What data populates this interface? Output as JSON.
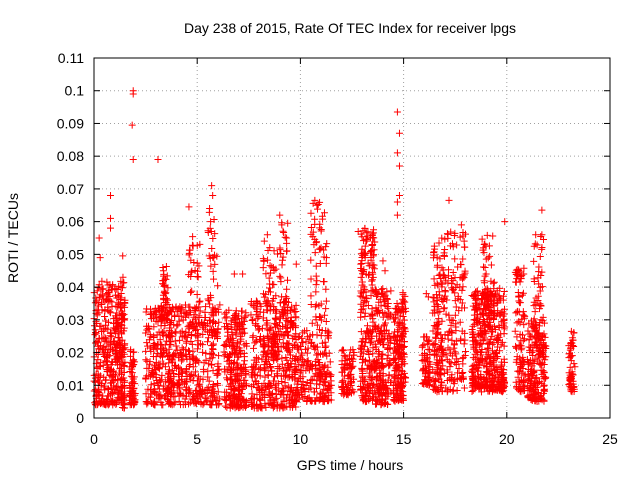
{
  "chart_data": {
    "type": "scatter",
    "title": "Day 238 of 2015, Rate Of TEC Index for receiver lpgs",
    "xlabel": "GPS time / hours",
    "ylabel": "ROTI / TECUs",
    "xlim": [
      0,
      25
    ],
    "ylim": [
      0,
      0.11
    ],
    "x_ticks": [
      "0",
      "5",
      "10",
      "15",
      "20",
      "25"
    ],
    "y_ticks": [
      "0",
      "0.01",
      "0.02",
      "0.03",
      "0.04",
      "0.05",
      "0.06",
      "0.07",
      "0.08",
      "0.09",
      "0.1",
      "0.11"
    ],
    "grid": true,
    "legend": "none",
    "marker": "plus",
    "color": "#ff0000",
    "clusters": [
      {
        "x": [
          0.0,
          1.5
        ],
        "y": [
          0.004,
          0.042
        ],
        "n": 380
      },
      {
        "x": [
          1.3,
          1.5
        ],
        "y": [
          0.003,
          0.05
        ],
        "n": 40
      },
      {
        "x": [
          1.7,
          2.0
        ],
        "y": [
          0.004,
          0.021
        ],
        "n": 60
      },
      {
        "x": [
          2.5,
          3.8
        ],
        "y": [
          0.004,
          0.035
        ],
        "n": 220
      },
      {
        "x": [
          3.3,
          3.6
        ],
        "y": [
          0.03,
          0.048
        ],
        "n": 40
      },
      {
        "x": [
          3.6,
          6.1
        ],
        "y": [
          0.004,
          0.035
        ],
        "n": 360
      },
      {
        "x": [
          4.5,
          5.2
        ],
        "y": [
          0.025,
          0.058
        ],
        "n": 40
      },
      {
        "x": [
          5.5,
          6.0
        ],
        "y": [
          0.025,
          0.065
        ],
        "n": 40
      },
      {
        "x": [
          6.3,
          7.4
        ],
        "y": [
          0.003,
          0.033
        ],
        "n": 260
      },
      {
        "x": [
          7.6,
          9.8
        ],
        "y": [
          0.003,
          0.036
        ],
        "n": 380
      },
      {
        "x": [
          8.2,
          8.9
        ],
        "y": [
          0.02,
          0.055
        ],
        "n": 60
      },
      {
        "x": [
          9.0,
          9.4
        ],
        "y": [
          0.025,
          0.06
        ],
        "n": 40
      },
      {
        "x": [
          9.7,
          11.5
        ],
        "y": [
          0.005,
          0.027
        ],
        "n": 220
      },
      {
        "x": [
          10.5,
          11.3
        ],
        "y": [
          0.028,
          0.066
        ],
        "n": 60
      },
      {
        "x": [
          12.0,
          12.6
        ],
        "y": [
          0.007,
          0.021
        ],
        "n": 80
      },
      {
        "x": [
          12.9,
          13.6
        ],
        "y": [
          0.005,
          0.058
        ],
        "n": 220
      },
      {
        "x": [
          13.6,
          14.4
        ],
        "y": [
          0.004,
          0.04
        ],
        "n": 200
      },
      {
        "x": [
          14.5,
          15.0
        ],
        "y": [
          0.005,
          0.035
        ],
        "n": 160
      },
      {
        "x": [
          14.9,
          15.1
        ],
        "y": [
          0.01,
          0.04
        ],
        "n": 40
      },
      {
        "x": [
          15.9,
          16.3
        ],
        "y": [
          0.01,
          0.025
        ],
        "n": 60
      },
      {
        "x": [
          16.4,
          17.0
        ],
        "y": [
          0.008,
          0.055
        ],
        "n": 140
      },
      {
        "x": [
          17.0,
          18.0
        ],
        "y": [
          0.008,
          0.058
        ],
        "n": 140
      },
      {
        "x": [
          18.3,
          19.9
        ],
        "y": [
          0.008,
          0.04
        ],
        "n": 420
      },
      {
        "x": [
          18.8,
          19.4
        ],
        "y": [
          0.03,
          0.057
        ],
        "n": 50
      },
      {
        "x": [
          20.4,
          20.9
        ],
        "y": [
          0.008,
          0.046
        ],
        "n": 100
      },
      {
        "x": [
          21.0,
          21.9
        ],
        "y": [
          0.005,
          0.03
        ],
        "n": 180
      },
      {
        "x": [
          21.3,
          21.8
        ],
        "y": [
          0.02,
          0.056
        ],
        "n": 60
      },
      {
        "x": [
          23.0,
          23.3
        ],
        "y": [
          0.008,
          0.027
        ],
        "n": 60
      }
    ],
    "outliers": [
      [
        1.9,
        0.1
      ],
      [
        1.9,
        0.099
      ],
      [
        1.85,
        0.0895
      ],
      [
        1.9,
        0.079
      ],
      [
        3.1,
        0.079
      ],
      [
        14.7,
        0.0935
      ],
      [
        14.8,
        0.087
      ],
      [
        14.7,
        0.081
      ],
      [
        14.8,
        0.077
      ],
      [
        14.8,
        0.068
      ],
      [
        14.7,
        0.066
      ],
      [
        14.7,
        0.062
      ],
      [
        0.8,
        0.068
      ],
      [
        0.8,
        0.061
      ],
      [
        0.8,
        0.058
      ],
      [
        0.25,
        0.055
      ],
      [
        5.7,
        0.071
      ],
      [
        5.75,
        0.068
      ],
      [
        5.6,
        0.064
      ],
      [
        5.65,
        0.06
      ],
      [
        4.6,
        0.0645
      ],
      [
        9.0,
        0.062
      ],
      [
        9.1,
        0.059
      ],
      [
        10.7,
        0.0665
      ],
      [
        10.8,
        0.065
      ],
      [
        17.2,
        0.0665
      ],
      [
        19.9,
        0.06
      ],
      [
        21.7,
        0.0635
      ],
      [
        21.7,
        0.056
      ],
      [
        21.4,
        0.056
      ],
      [
        11.0,
        0.052
      ],
      [
        16.1,
        0.038
      ],
      [
        16.2,
        0.037
      ],
      [
        17.8,
        0.059
      ],
      [
        12.8,
        0.057
      ],
      [
        13.4,
        0.055
      ],
      [
        13.5,
        0.053
      ],
      [
        14.0,
        0.048
      ],
      [
        14.1,
        0.045
      ],
      [
        9.8,
        0.047
      ],
      [
        8.4,
        0.056
      ],
      [
        6.8,
        0.044
      ],
      [
        7.2,
        0.044
      ],
      [
        0.3,
        0.049
      ],
      [
        1.3,
        0.034
      ]
    ]
  }
}
